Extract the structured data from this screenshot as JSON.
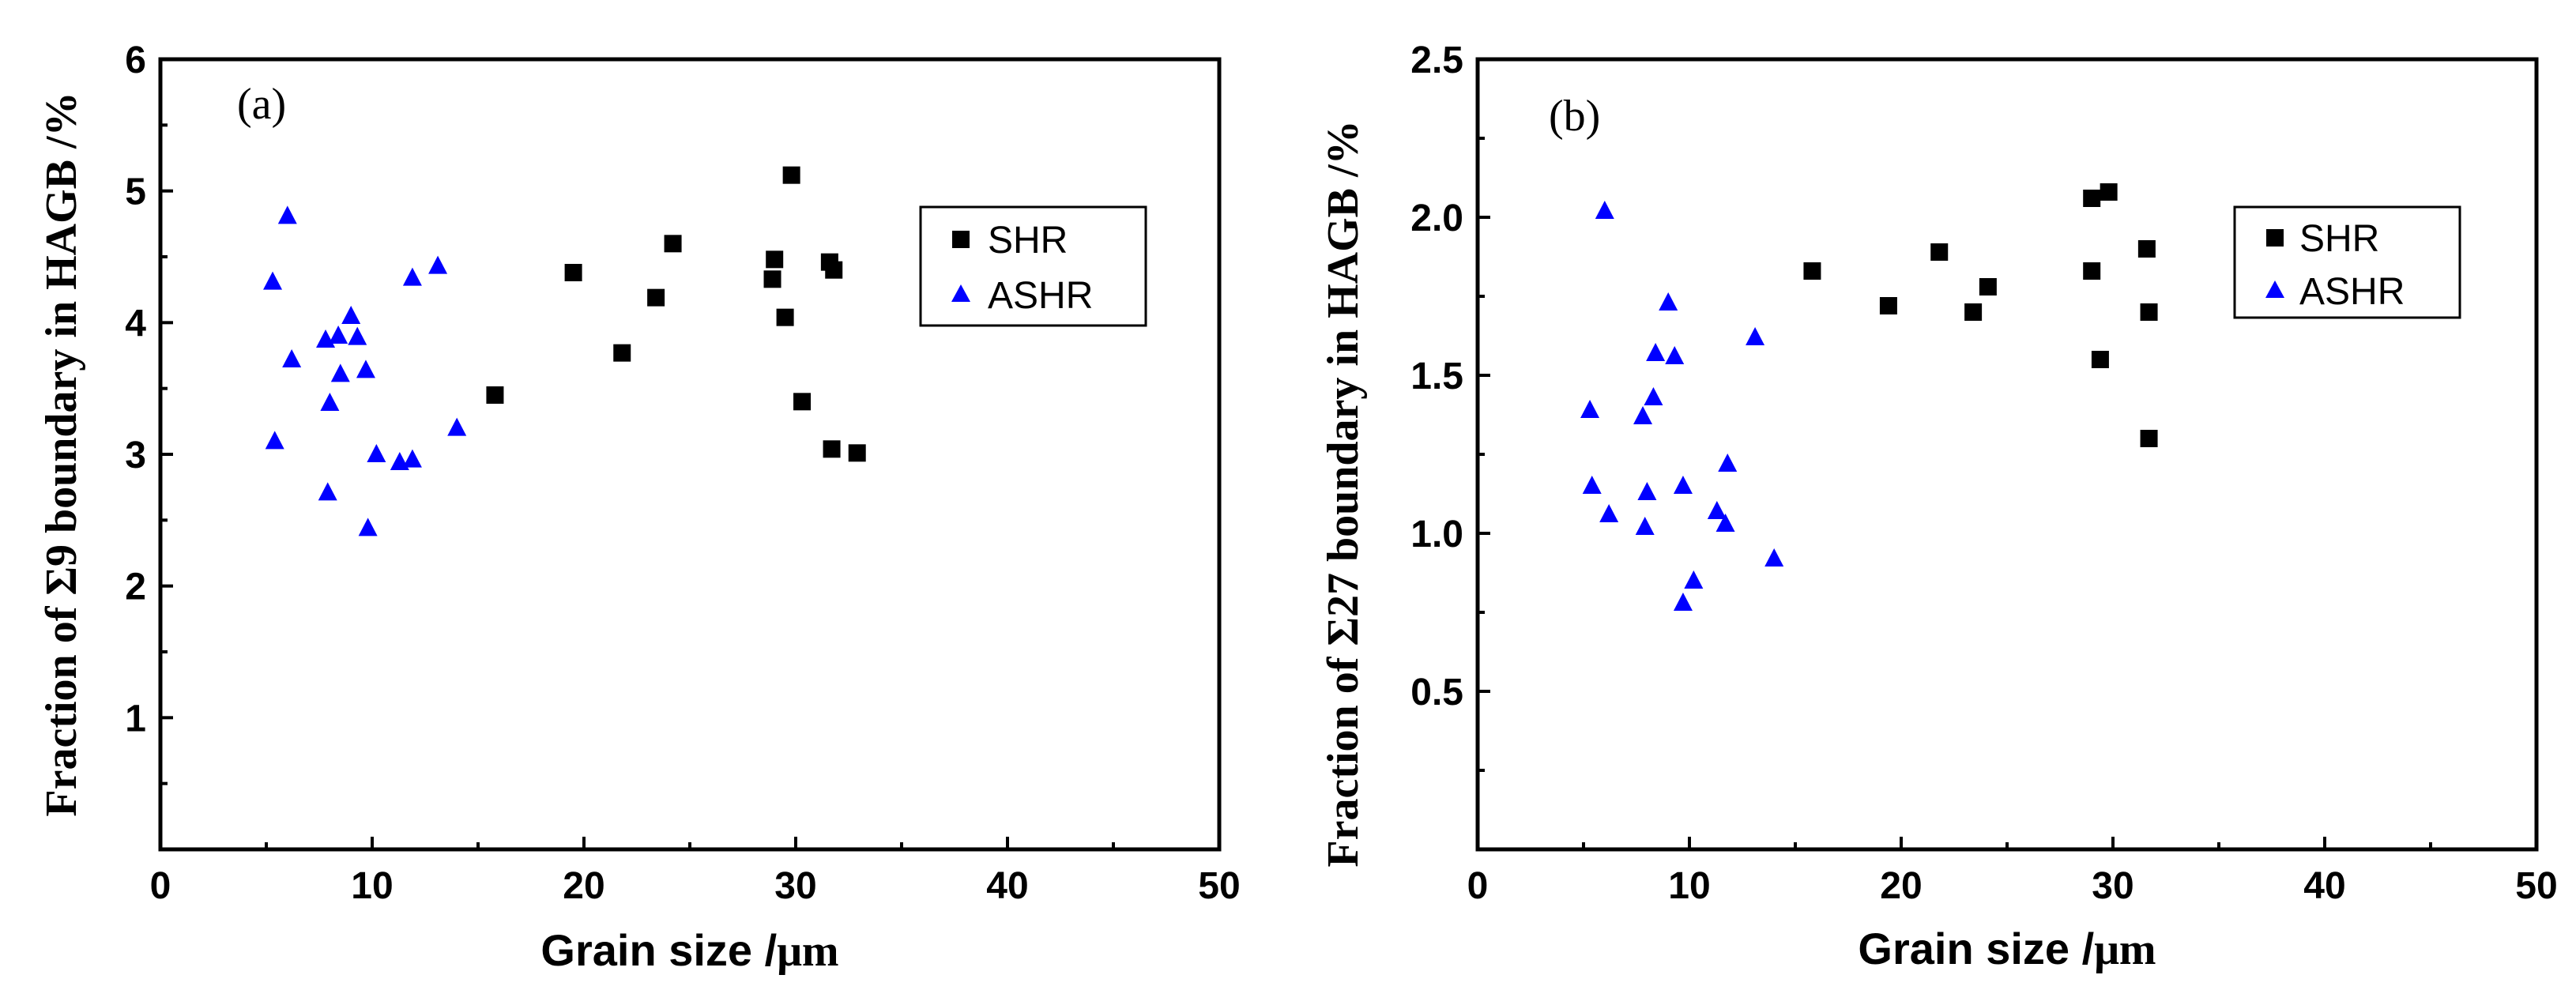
{
  "chart_data": [
    {
      "type": "scatter",
      "panel_label": "(a)",
      "title": "",
      "xlabel_main": "Grain size /",
      "xlabel_unit": "μm",
      "ylabel": "Fraction of Σ9 boundary in HAGB /%",
      "xlim": [
        0,
        50
      ],
      "ylim": [
        0,
        6
      ],
      "xticks": [
        0,
        10,
        20,
        30,
        40,
        50
      ],
      "yticks": [
        1,
        2,
        3,
        4,
        5,
        6
      ],
      "xtick_labels": [
        "0",
        "10",
        "20",
        "30",
        "40",
        "50"
      ],
      "ytick_labels": [
        "1",
        "2",
        "3",
        "4",
        "5",
        "6"
      ],
      "legend": {
        "position": "top-right",
        "entries": [
          "SHR",
          "ASHR"
        ]
      },
      "series": [
        {
          "name": "SHR",
          "marker": "square",
          "color": "#000000",
          "points": [
            [
              15.8,
              3.45
            ],
            [
              19.5,
              4.38
            ],
            [
              21.8,
              3.77
            ],
            [
              23.4,
              4.19
            ],
            [
              24.2,
              4.6
            ],
            [
              29.0,
              4.48
            ],
            [
              28.9,
              4.33
            ],
            [
              29.5,
              4.04
            ],
            [
              29.8,
              5.12
            ],
            [
              30.3,
              3.4
            ],
            [
              31.6,
              4.46
            ],
            [
              31.8,
              4.4
            ],
            [
              31.7,
              3.04
            ],
            [
              32.9,
              3.01
            ]
          ]
        },
        {
          "name": "ASHR",
          "marker": "triangle",
          "color": "#0000ff",
          "points": [
            [
              5.3,
              4.31
            ],
            [
              5.4,
              3.1
            ],
            [
              6.0,
              4.81
            ],
            [
              6.2,
              3.72
            ],
            [
              7.8,
              3.87
            ],
            [
              8.0,
              3.39
            ],
            [
              7.9,
              2.71
            ],
            [
              8.4,
              3.9
            ],
            [
              8.5,
              3.61
            ],
            [
              9.0,
              4.05
            ],
            [
              9.3,
              3.89
            ],
            [
              9.7,
              3.64
            ],
            [
              9.8,
              2.44
            ],
            [
              10.2,
              3.0
            ],
            [
              11.3,
              2.94
            ],
            [
              11.9,
              2.96
            ],
            [
              11.9,
              4.34
            ],
            [
              13.1,
              4.43
            ],
            [
              14.0,
              3.2
            ]
          ]
        }
      ]
    },
    {
      "type": "scatter",
      "panel_label": "(b)",
      "title": "",
      "xlabel_main": "Grain size /",
      "xlabel_unit": "μm",
      "ylabel": "Fraction of Σ27 boundary in HAGB /%",
      "xlim": [
        0,
        50
      ],
      "ylim": [
        0,
        2.5
      ],
      "xticks": [
        0,
        10,
        20,
        30,
        40,
        50
      ],
      "yticks": [
        0.5,
        1.0,
        1.5,
        2.0,
        2.5
      ],
      "xtick_labels": [
        "0",
        "10",
        "20",
        "30",
        "40",
        "50"
      ],
      "ytick_labels": [
        "0.5",
        "1.0",
        "1.5",
        "2.0",
        "2.5"
      ],
      "legend": {
        "position": "top-right",
        "entries": [
          "SHR",
          "ASHR"
        ]
      },
      "series": [
        {
          "name": "SHR",
          "marker": "square",
          "color": "#000000",
          "points": [
            [
              15.8,
              1.83
            ],
            [
              19.4,
              1.72
            ],
            [
              21.8,
              1.89
            ],
            [
              23.4,
              1.7
            ],
            [
              24.1,
              1.78
            ],
            [
              29.0,
              2.06
            ],
            [
              29.0,
              1.83
            ],
            [
              29.8,
              2.08
            ],
            [
              29.4,
              1.55
            ],
            [
              31.6,
              1.9
            ],
            [
              31.7,
              1.7
            ],
            [
              31.7,
              1.3
            ]
          ]
        },
        {
          "name": "ASHR",
          "marker": "triangle",
          "color": "#0000ff",
          "points": [
            [
              5.3,
              1.39
            ],
            [
              5.4,
              1.15
            ],
            [
              6.0,
              2.02
            ],
            [
              6.2,
              1.06
            ],
            [
              7.8,
              1.37
            ],
            [
              7.9,
              1.02
            ],
            [
              8.0,
              1.13
            ],
            [
              8.3,
              1.43
            ],
            [
              8.4,
              1.57
            ],
            [
              9.0,
              1.73
            ],
            [
              9.3,
              1.56
            ],
            [
              9.7,
              1.15
            ],
            [
              9.7,
              0.78
            ],
            [
              10.2,
              0.85
            ],
            [
              11.3,
              1.07
            ],
            [
              11.7,
              1.03
            ],
            [
              11.8,
              1.22
            ],
            [
              13.1,
              1.62
            ],
            [
              14.0,
              0.92
            ]
          ]
        }
      ]
    }
  ]
}
